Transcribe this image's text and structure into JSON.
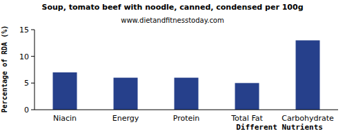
{
  "chart_data": {
    "type": "bar",
    "title": "Soup, tomato beef with noodle, canned, condensed per 100g",
    "subtitle": "www.dietandfitnesstoday.com",
    "x_label": "Different Nutrients",
    "y_label": "Percentage of RDA (%)",
    "categories": [
      "Niacin",
      "Energy",
      "Protein",
      "Total Fat",
      "Carbohydrate"
    ],
    "values": [
      7,
      6,
      6,
      5,
      13
    ],
    "color": "#26408b",
    "ylim": [
      0,
      15
    ],
    "yticks": [
      0,
      5,
      10,
      15
    ],
    "grid": false
  }
}
